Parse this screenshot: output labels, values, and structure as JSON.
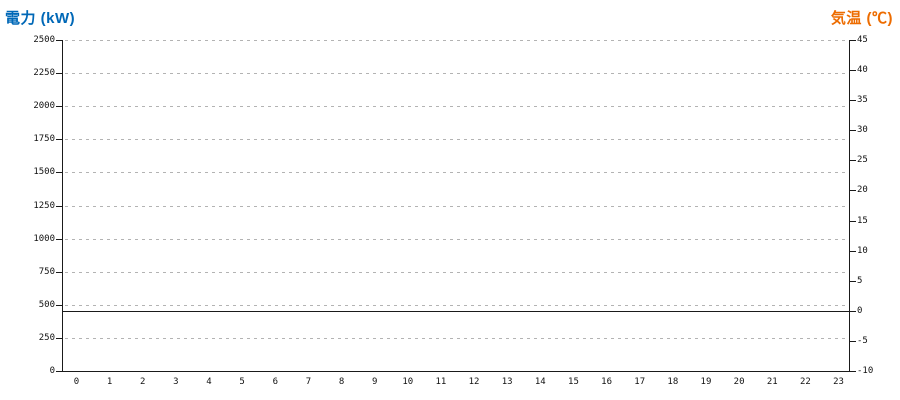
{
  "titles": {
    "left_axis": "電力 (kW)",
    "right_axis": "気温 (℃)"
  },
  "colors": {
    "left_title": "#0068b7",
    "right_title": "#ed6c00",
    "grid": "#b3b3b3",
    "axis": "#1a1a1a",
    "zero_line": "#1a1a1a",
    "background": "#ffffff"
  },
  "chart_data": {
    "type": "line",
    "title": "",
    "x": {
      "label": "",
      "ticks": [
        "0",
        "1",
        "2",
        "3",
        "4",
        "5",
        "6",
        "7",
        "8",
        "9",
        "10",
        "11",
        "12",
        "13",
        "14",
        "15",
        "16",
        "17",
        "18",
        "19",
        "20",
        "21",
        "22",
        "23"
      ]
    },
    "y_left": {
      "label": "電力 (kW)",
      "min": 0,
      "max": 2500,
      "step": 250,
      "ticks": [
        "2500",
        "2250",
        "2000",
        "1750",
        "1500",
        "1250",
        "1000",
        "750",
        "500",
        "250",
        "0"
      ]
    },
    "y_right": {
      "label": "気温 (℃)",
      "min": -10,
      "max": 45,
      "step": 5,
      "ticks": [
        "45",
        "40",
        "35",
        "30",
        "25",
        "20",
        "15",
        "10",
        "5",
        "0",
        "-5",
        "-10"
      ]
    },
    "series": [],
    "reference_lines": [
      {
        "axis": "right",
        "value": 0,
        "style": "solid"
      }
    ],
    "grid": {
      "horizontal": "dashed",
      "vertical": "none"
    },
    "legend": "none"
  }
}
